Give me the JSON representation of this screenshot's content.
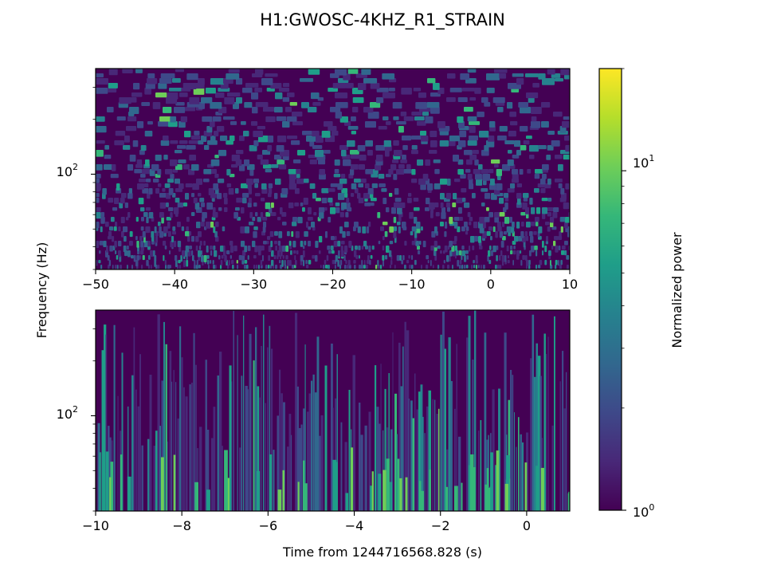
{
  "chart_data": [
    {
      "type": "heatmap",
      "title": "H1:GWOSC-4KHZ_R1_STRAIN",
      "ylabel": "Frequency (Hz)",
      "xlabel": "",
      "xlim": [
        -50,
        10
      ],
      "yscale": "log",
      "ylim": [
        30,
        380
      ],
      "x_ticks": [
        -50,
        -40,
        -30,
        -20,
        -10,
        0,
        10
      ],
      "x_tick_labels": [
        "−50",
        "−40",
        "−30",
        "−20",
        "−10",
        "0",
        "10"
      ],
      "y_ticks": [
        100
      ],
      "y_tick_labels": [
        {
          "base": "10",
          "exp": "2"
        }
      ],
      "colormap": "viridis"
    },
    {
      "type": "heatmap",
      "xlabel": "Time from 1244716568.828 (s)",
      "ylabel": "Frequency (Hz)",
      "xlim": [
        -10,
        1
      ],
      "yscale": "log",
      "ylim": [
        30,
        380
      ],
      "x_ticks": [
        -10,
        -8,
        -6,
        -4,
        -2,
        0
      ],
      "x_tick_labels": [
        "−10",
        "−8",
        "−6",
        "−4",
        "−2",
        "0"
      ],
      "y_ticks": [
        100
      ],
      "y_tick_labels": [
        {
          "base": "10",
          "exp": "2"
        }
      ],
      "colormap": "viridis"
    }
  ],
  "colorbar": {
    "label": "Normalized power",
    "scale": "log",
    "range": [
      1,
      20
    ],
    "tick_labels": [
      {
        "value": 1,
        "base": "10",
        "exp": "0"
      },
      {
        "value": 10,
        "base": "10",
        "exp": "1"
      }
    ],
    "colors": [
      "#440154",
      "#482878",
      "#3e4989",
      "#31688e",
      "#26828e",
      "#1f9e89",
      "#35b779",
      "#6ece58",
      "#b5de2b",
      "#fde725"
    ]
  }
}
